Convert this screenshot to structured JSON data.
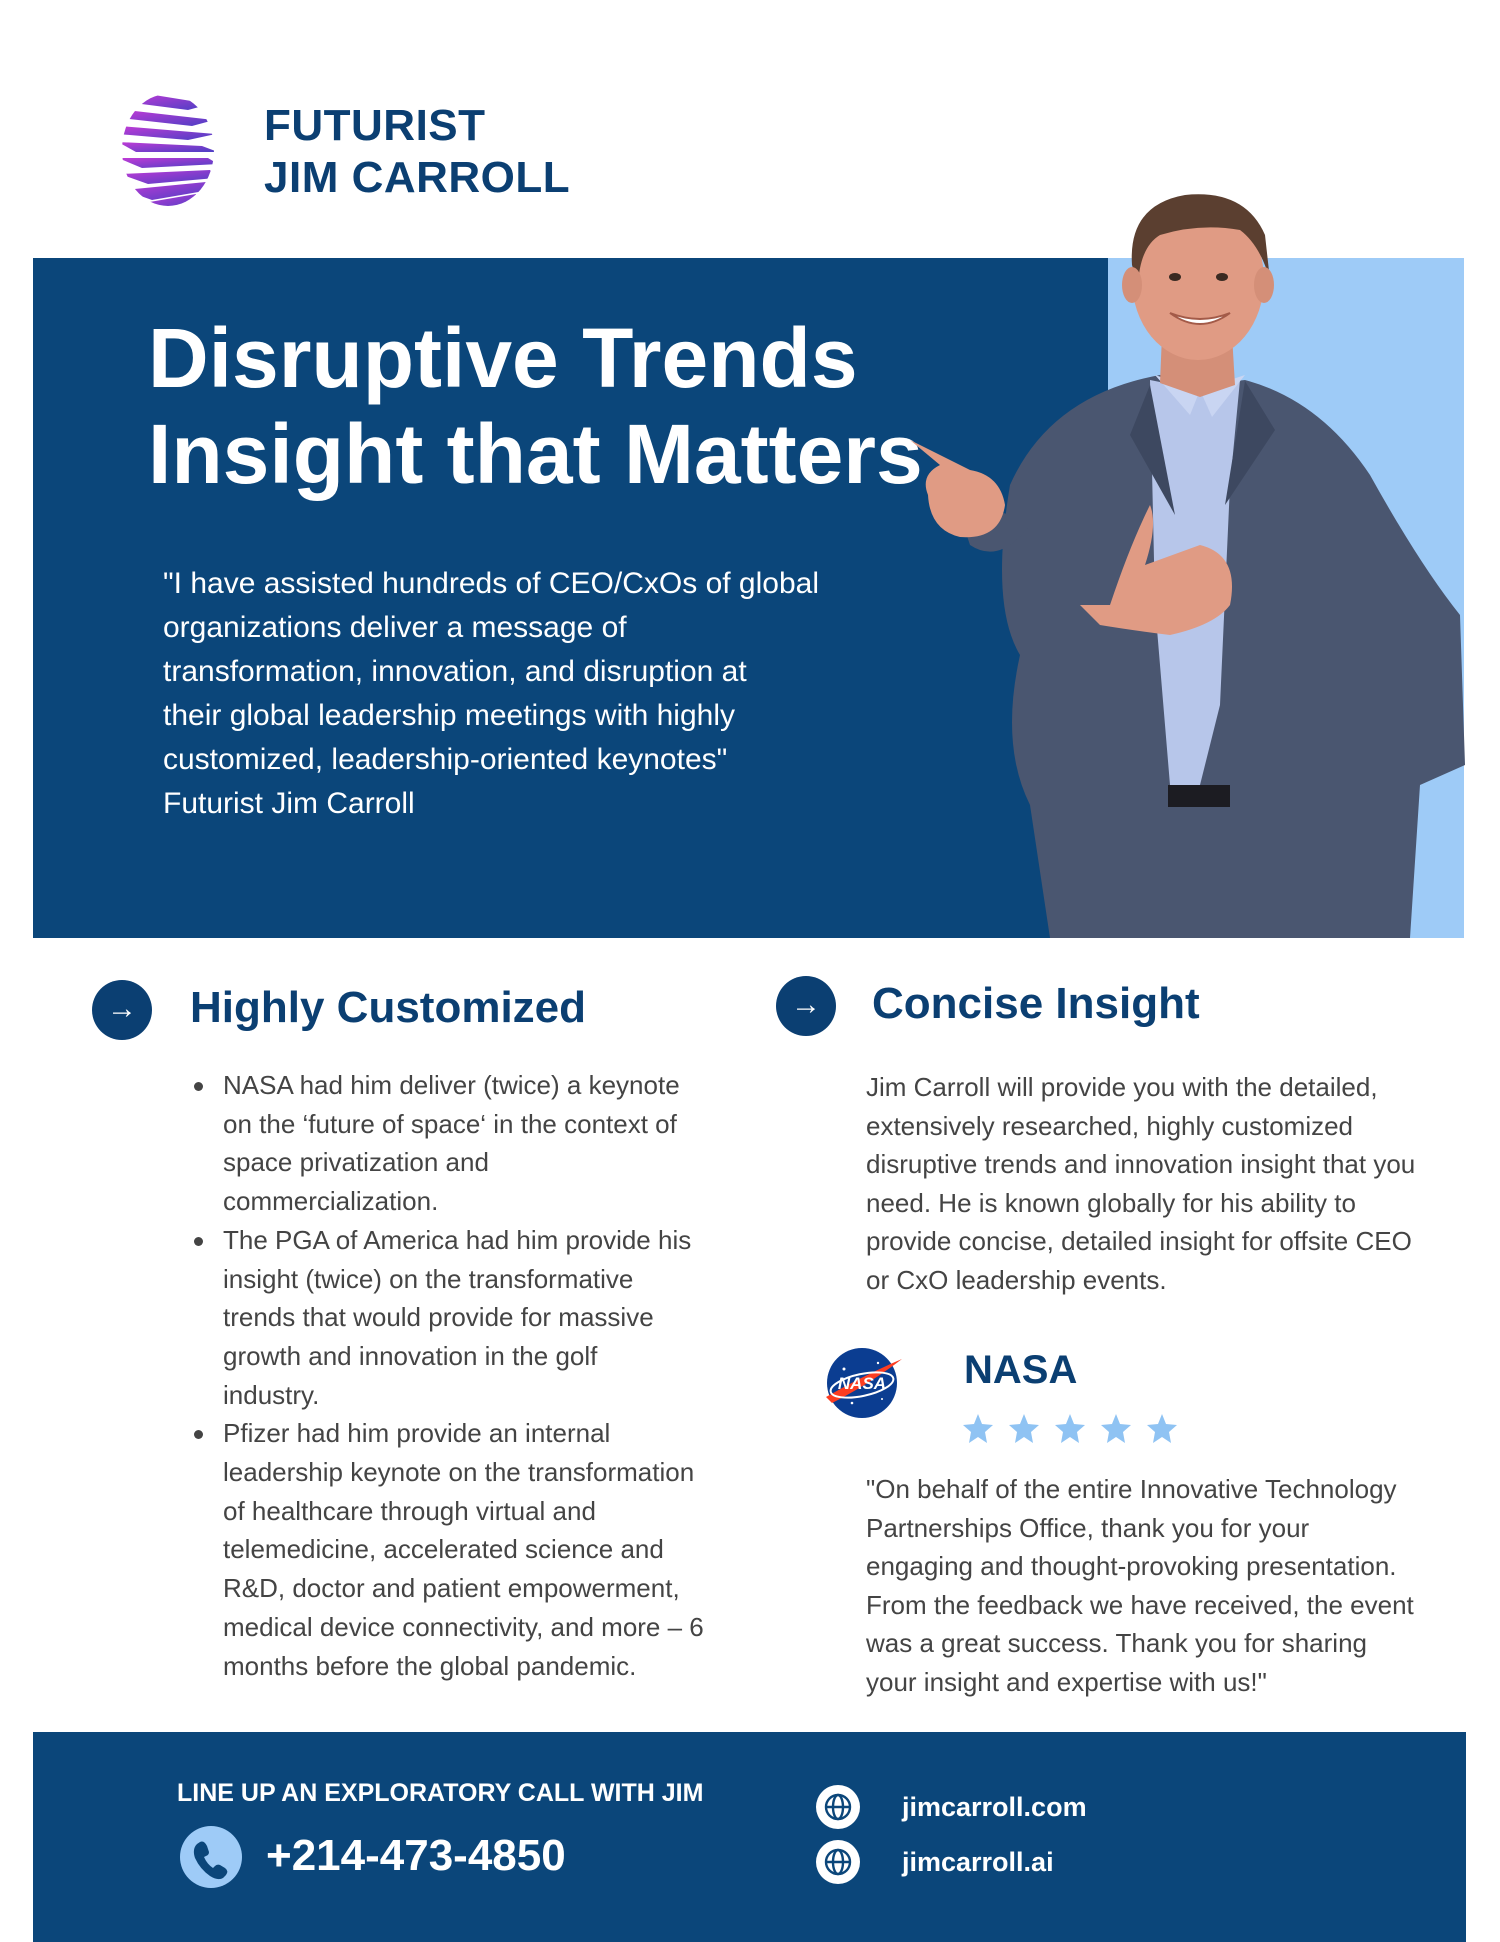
{
  "brand": {
    "line1": "FUTURIST",
    "line2": "JIM CARROLL",
    "logo_icon": "striped-globe-icon"
  },
  "hero": {
    "title_line1": "Disruptive Trends",
    "title_line2": "Insight that Matters",
    "quote_lines": [
      "\"I have assisted hundreds of CEO/CxOs of global",
      "organizations deliver a message of",
      "transformation, innovation, and disruption at",
      "their global leadership meetings with highly",
      "customized, leadership-oriented keynotes\"",
      "Futurist Jim Carroll"
    ],
    "colors": {
      "panel": "#0b467a",
      "accent": "#9ecbf7"
    }
  },
  "customized": {
    "title": "Highly Customized",
    "icon": "arrow-right-icon",
    "bullets": [
      [
        "NASA had him deliver (twice) a keynote",
        "on the ‘future of space‘ in the context of",
        "space privatization and",
        "commercialization."
      ],
      [
        "The PGA of America had him provide his",
        "insight (twice) on the transformative",
        "trends that would provide for massive",
        "growth and innovation in the golf",
        "industry."
      ],
      [
        "Pfizer had him provide an internal",
        "leadership keynote on the transformation",
        "of healthcare through virtual and",
        "telemedicine, accelerated science and",
        "R&D, doctor and patient empowerment,",
        "medical device connectivity, and more – 6",
        "months before the global pandemic."
      ]
    ]
  },
  "concise": {
    "title": "Concise Insight",
    "icon": "arrow-right-icon",
    "lines": [
      "Jim Carroll will provide you with the detailed,",
      "extensively researched, highly customized",
      "disruptive trends and innovation insight that you",
      "need. He is known globally for his ability to",
      "provide concise, detailed insight for offsite CEO",
      "or CxO leadership events."
    ]
  },
  "testimonial": {
    "org": "NASA",
    "logo_icon": "nasa-meatball-logo",
    "rating": 5,
    "rating_max": 5,
    "star_color": "#8fc3f3",
    "lines": [
      "\"On behalf of the entire Innovative Technology",
      "Partnerships Office, thank you for your",
      "engaging and thought-provoking presentation.",
      "From the feedback we have received, the event",
      "was a great success. Thank you for sharing",
      "your insight and expertise with us!\""
    ]
  },
  "footer": {
    "cta": "LINE UP AN EXPLORATORY CALL WITH JIM",
    "phone": "+214-473-4850",
    "phone_icon": "phone-icon",
    "links": [
      {
        "text": "jimcarroll.com",
        "icon": "globe-icon"
      },
      {
        "text": "jimcarroll.ai",
        "icon": "globe-icon"
      }
    ]
  }
}
